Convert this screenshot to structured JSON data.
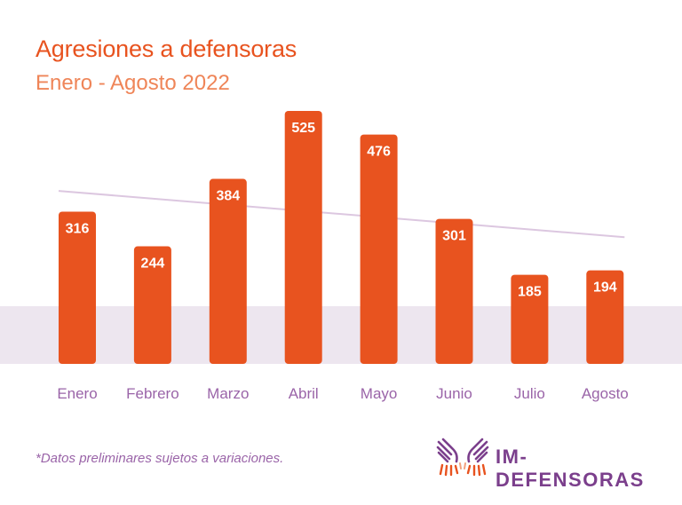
{
  "chart_data": {
    "type": "bar",
    "title": "Agresiones a defensoras",
    "subtitle": "Enero - Agosto 2022",
    "categories": [
      "Enero",
      "Febrero",
      "Marzo",
      "Abril",
      "Mayo",
      "Junio",
      "Julio",
      "Agosto"
    ],
    "values": [
      316,
      244,
      384,
      525,
      476,
      301,
      185,
      194
    ],
    "xlabel": "",
    "ylabel": "",
    "ylim": [
      0,
      525
    ],
    "grid": false,
    "trendline": {
      "type": "linear",
      "start_value": 359,
      "end_value": 263
    },
    "colors": {
      "bar": "#e8531f",
      "bar_label": "#ffffff",
      "category_label": "#9a64a8",
      "trendline": "#dcc7e0",
      "band": "#ede6ef"
    }
  },
  "footnote": "*Datos preliminares sujetos a variaciones.",
  "logo": {
    "text": "IM-DEFENSORAS",
    "icon": "hands-icon"
  }
}
